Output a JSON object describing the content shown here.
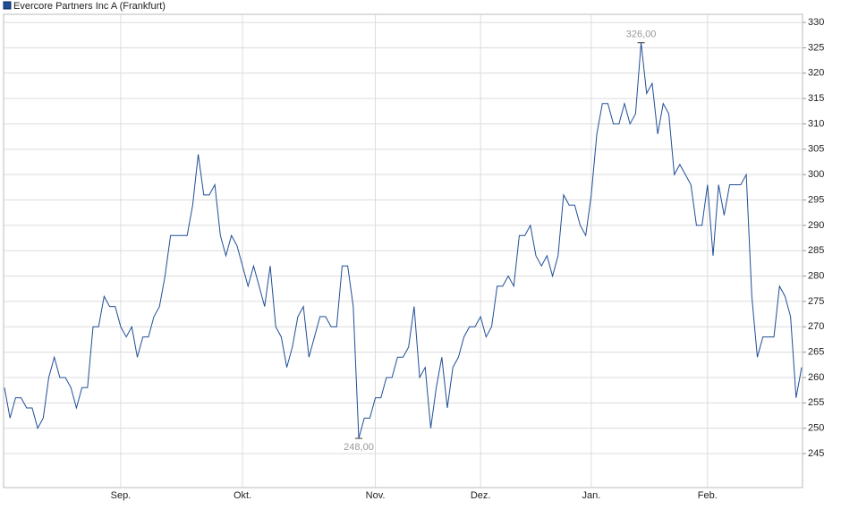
{
  "chart_data": {
    "type": "line",
    "series": [
      {
        "name": "Evercore Partners Inc A (Frankfurt)",
        "color": "#1f4e96",
        "values": [
          258,
          252,
          256,
          256,
          254,
          254,
          250,
          252,
          260,
          264,
          260,
          260,
          258,
          254,
          258,
          258,
          270,
          270,
          276,
          274,
          274,
          270,
          268,
          270,
          264,
          268,
          268,
          272,
          274,
          280,
          288,
          288,
          288,
          288,
          294,
          304,
          296,
          296,
          298,
          288,
          284,
          288,
          286,
          282,
          278,
          282,
          278,
          274,
          282,
          270,
          268,
          262,
          266,
          272,
          274,
          264,
          268,
          272,
          272,
          270,
          270,
          282,
          282,
          274,
          248,
          252,
          252,
          256,
          256,
          260,
          260,
          264,
          264,
          266,
          274,
          260,
          262,
          250,
          258,
          264,
          254,
          262,
          264,
          268,
          270,
          270,
          272,
          268,
          270,
          278,
          278,
          280,
          278,
          288,
          288,
          290,
          284,
          282,
          284,
          280,
          284,
          296,
          294,
          294,
          290,
          288,
          296,
          308,
          314,
          314,
          310,
          310,
          314,
          310,
          312,
          326,
          316,
          318,
          308,
          314,
          312,
          300,
          302,
          300,
          298,
          290,
          290,
          298,
          284,
          298,
          292,
          298,
          298,
          298,
          300,
          276,
          264,
          268,
          268,
          268,
          278,
          276,
          272,
          256,
          262
        ]
      }
    ],
    "annotations": [
      {
        "value": 326,
        "label": "326,00"
      },
      {
        "value": 248,
        "label": "248,00"
      }
    ],
    "xlim": [
      0,
      144
    ],
    "xticks": [
      {
        "value": 21,
        "label": "Sep."
      },
      {
        "value": 43,
        "label": "Okt."
      },
      {
        "value": 67,
        "label": "Nov."
      },
      {
        "value": 86,
        "label": "Dez."
      },
      {
        "value": 106,
        "label": "Jan."
      },
      {
        "value": 127,
        "label": "Feb."
      }
    ],
    "ylim": [
      238.3,
      331.6
    ],
    "yticks": [
      245,
      250,
      255,
      260,
      265,
      270,
      275,
      280,
      285,
      290,
      295,
      300,
      305,
      310,
      315,
      320,
      325,
      330
    ],
    "grid": true
  }
}
